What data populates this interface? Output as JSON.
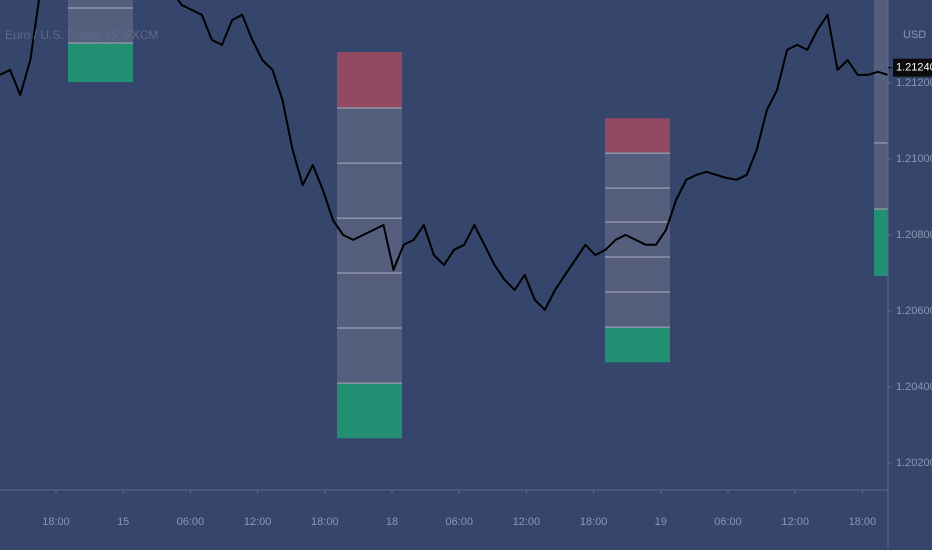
{
  "chart_data": {
    "type": "line",
    "legend_text": "Euro / U.S. Dollar, 15, FXCM",
    "currency": "USD",
    "last_price_label": "1.21240",
    "last_price": 1.2124,
    "x_labels": [
      "18:00",
      "15",
      "06:00",
      "12:00",
      "18:00",
      "18",
      "06:00",
      "12:00",
      "18:00",
      "19",
      "06:00",
      "12:00",
      "18:00"
    ],
    "ylim": [
      1.20129,
      1.21418
    ],
    "yticks": [
      {
        "value": 1.202,
        "label": "1.20200"
      },
      {
        "value": 1.204,
        "label": "1.20400"
      },
      {
        "value": 1.206,
        "label": "1.20600"
      },
      {
        "value": 1.208,
        "label": "1.20800"
      },
      {
        "value": 1.21,
        "label": "1.21000"
      },
      {
        "value": 1.212,
        "label": "1.21200"
      }
    ],
    "series": [
      {
        "name": "EURUSD",
        "color": "#000000",
        "values": [
          1.21221,
          1.21234,
          1.21168,
          1.2126,
          1.21444,
          1.21471,
          1.21484,
          1.21471,
          1.21457,
          1.21471,
          1.21484,
          1.21471,
          1.21457,
          1.21444,
          1.21457,
          1.21471,
          1.21457,
          1.21444,
          1.21405,
          1.21392,
          1.21379,
          1.21313,
          1.213,
          1.21365,
          1.21379,
          1.21313,
          1.2126,
          1.21234,
          1.21155,
          1.21024,
          1.20931,
          1.20984,
          1.20918,
          1.20839,
          1.208,
          1.20787,
          1.208,
          1.20813,
          1.20826,
          1.20708,
          1.20774,
          1.20787,
          1.20826,
          1.20747,
          1.20721,
          1.20761,
          1.20774,
          1.20826,
          1.20774,
          1.20721,
          1.20682,
          1.20655,
          1.20695,
          1.20629,
          1.20603,
          1.20655,
          1.20695,
          1.20734,
          1.20774,
          1.20747,
          1.20761,
          1.20787,
          1.208,
          1.20787,
          1.20774,
          1.20774,
          1.20813,
          1.20892,
          1.20945,
          1.20958,
          1.20966,
          1.20958,
          1.2095,
          1.20945,
          1.20958,
          1.21024,
          1.21129,
          1.21181,
          1.21287,
          1.213,
          1.21287,
          1.21339,
          1.21379,
          1.21234,
          1.2126,
          1.21221,
          1.21221,
          1.21229,
          1.21221
        ]
      }
    ],
    "zones": [
      {
        "levels": [
          1.21497,
          1.21397,
          1.21305,
          1.21202
        ],
        "colors": [
          "#5a6480",
          "#5a6480",
          "#1e9c74"
        ]
      },
      {
        "levels": [
          1.21281,
          1.21134,
          1.20989,
          1.20844,
          1.207,
          1.20555,
          1.2041,
          1.20265
        ],
        "colors": [
          "#a34b5e",
          "#5a6480",
          "#5a6480",
          "#5a6480",
          "#5a6480",
          "#5a6480",
          "#1e9c74"
        ]
      },
      {
        "levels": [
          1.21107,
          1.21015,
          1.20923,
          1.20834,
          1.20742,
          1.2065,
          1.20557,
          1.20465
        ],
        "colors": [
          "#a34b5e",
          "#5a6480",
          "#5a6480",
          "#5a6480",
          "#5a6480",
          "#5a6480",
          "#1e9c74"
        ]
      },
      {
        "levels": [
          1.21471,
          1.21042,
          1.20868,
          1.20692
        ],
        "colors": [
          "#5a6480",
          "#5a6480",
          "#1e9c74"
        ]
      }
    ]
  }
}
